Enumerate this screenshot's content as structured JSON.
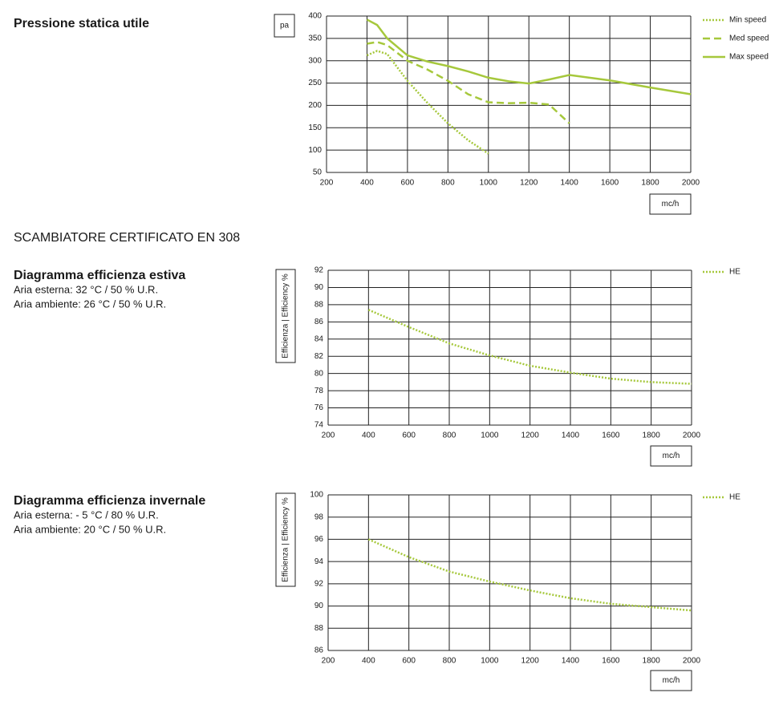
{
  "section_title": "SCAMBIATORE CERTIFICATO EN 308",
  "chart_data": [
    {
      "type": "line",
      "title": "Pressione statica utile",
      "notes": [],
      "y_label": "pa",
      "x_label": "mc/h",
      "x": [
        400,
        450,
        500,
        600,
        700,
        800,
        900,
        1000,
        1100,
        1200,
        1300,
        1400,
        1600,
        1800,
        2000
      ],
      "series": [
        {
          "name": "Min speed",
          "color": "#a6c83c",
          "dash": "dotted",
          "values": [
            312,
            322,
            315,
            255,
            205,
            160,
            122,
            92,
            null,
            null,
            null,
            null,
            null,
            null,
            null
          ]
        },
        {
          "name": "Med speed",
          "color": "#a6c83c",
          "dash": "dashed",
          "values": [
            338,
            342,
            335,
            300,
            280,
            255,
            225,
            207,
            205,
            206,
            202,
            160,
            null,
            null,
            null
          ]
        },
        {
          "name": "Max speed",
          "color": "#a6c83c",
          "dash": "solid",
          "values": [
            392,
            380,
            350,
            312,
            298,
            288,
            276,
            262,
            254,
            249,
            258,
            268,
            256,
            240,
            225
          ]
        }
      ],
      "xlim": [
        200,
        2000
      ],
      "ylim": [
        50,
        400
      ],
      "xticks": [
        200,
        400,
        600,
        800,
        1000,
        1200,
        1400,
        1600,
        1800,
        2000
      ],
      "yticks": [
        50,
        100,
        150,
        200,
        250,
        300,
        350,
        400
      ],
      "grid": true,
      "legend": "right"
    },
    {
      "type": "line",
      "title": "Diagramma efficienza estiva",
      "notes": [
        "Aria esterna: 32 °C / 50 % U.R.",
        "Aria ambiente: 26 °C / 50 % U.R."
      ],
      "y_label": "Efficienza | Efficiency %",
      "x_label": "mc/h",
      "x": [
        400,
        600,
        800,
        1000,
        1200,
        1400,
        1600,
        1800,
        2000
      ],
      "series": [
        {
          "name": "HE",
          "color": "#a6c83c",
          "dash": "dotted",
          "values": [
            87.4,
            85.4,
            83.5,
            82.1,
            80.9,
            80.1,
            79.4,
            79.0,
            78.8
          ]
        }
      ],
      "xlim": [
        200,
        2000
      ],
      "ylim": [
        74,
        92
      ],
      "xticks": [
        200,
        400,
        600,
        800,
        1000,
        1200,
        1400,
        1600,
        1800,
        2000
      ],
      "yticks": [
        74,
        76,
        78,
        80,
        82,
        84,
        86,
        88,
        90,
        92
      ],
      "grid": true,
      "legend": "right"
    },
    {
      "type": "line",
      "title": "Diagramma efficienza invernale",
      "notes": [
        "Aria esterna: - 5 °C / 80 % U.R.",
        "Aria ambiente: 20 °C / 50 % U.R."
      ],
      "y_label": "Efficienza | Efficiency %",
      "x_label": "mc/h",
      "x": [
        400,
        600,
        800,
        1000,
        1200,
        1400,
        1600,
        1800,
        2000
      ],
      "series": [
        {
          "name": "HE",
          "color": "#a6c83c",
          "dash": "dotted",
          "values": [
            96.0,
            94.4,
            93.1,
            92.2,
            91.4,
            90.7,
            90.2,
            89.9,
            89.6
          ]
        }
      ],
      "xlim": [
        200,
        2000
      ],
      "ylim": [
        86,
        100
      ],
      "xticks": [
        200,
        400,
        600,
        800,
        1000,
        1200,
        1400,
        1600,
        1800,
        2000
      ],
      "yticks": [
        86,
        88,
        90,
        92,
        94,
        96,
        98,
        100
      ],
      "grid": true,
      "legend": "right"
    }
  ]
}
